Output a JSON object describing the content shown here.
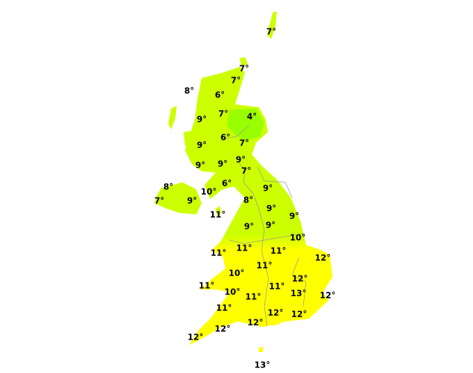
{
  "map": {
    "unit": "°",
    "colors": {
      "scotland_north": "#ccff00",
      "cold_core": "#99ff00",
      "south": "#ffff00",
      "boundary": "#999999"
    },
    "temperatures": [
      7,
      7,
      7,
      8,
      6,
      7,
      4,
      9,
      6,
      7,
      9,
      9,
      9,
      9,
      7,
      8,
      6,
      10,
      9,
      7,
      9,
      8,
      9,
      9,
      11,
      9,
      9,
      10,
      11,
      11,
      11,
      12,
      11,
      10,
      12,
      11,
      11,
      13,
      10,
      12,
      11,
      11,
      12,
      12,
      12,
      12,
      12,
      13
    ]
  }
}
